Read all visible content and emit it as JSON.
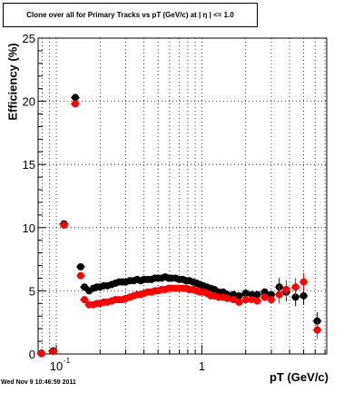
{
  "title": "Clone  over all for Primary Tracks vs pT (GeV/c) at |  η | <= 1.0",
  "timestamp": "Wed Nov  9 10:46:59 2011",
  "colors": {
    "series1": "#000000",
    "series2": "#ff0000",
    "grid": "#000000"
  },
  "chart_data": {
    "type": "scatter",
    "title": "Clone  over all for Primary Tracks vs pT (GeV/c) at |  η | <= 1.0",
    "xlabel": "pT (GeV/c)",
    "ylabel": "Efficiency (%)",
    "xscale": "log",
    "xlim": [
      0.075,
      7.2
    ],
    "ylim": [
      0,
      25
    ],
    "yticks": [
      0,
      5,
      10,
      15,
      20,
      25
    ],
    "xticks": [
      {
        "value": 0.1,
        "label": "10",
        "sup": "-1"
      },
      {
        "value": 1,
        "label": "1",
        "sup": ""
      }
    ],
    "grid": true,
    "series": [
      {
        "color": "#000000",
        "points": [
          [
            0.079,
            0.05
          ],
          [
            0.095,
            0.25
          ],
          [
            0.113,
            10.3
          ],
          [
            0.135,
            20.3
          ],
          [
            0.147,
            6.9
          ],
          [
            0.156,
            5.3
          ],
          [
            0.168,
            5.0
          ],
          [
            0.18,
            5.2
          ],
          [
            0.19,
            5.3
          ],
          [
            0.2,
            5.3
          ],
          [
            0.212,
            5.4
          ],
          [
            0.225,
            5.4
          ],
          [
            0.24,
            5.5
          ],
          [
            0.255,
            5.6
          ],
          [
            0.27,
            5.7
          ],
          [
            0.285,
            5.7
          ],
          [
            0.3,
            5.7
          ],
          [
            0.32,
            5.8
          ],
          [
            0.34,
            5.8
          ],
          [
            0.36,
            5.9
          ],
          [
            0.38,
            5.8
          ],
          [
            0.4,
            5.9
          ],
          [
            0.425,
            5.9
          ],
          [
            0.45,
            5.9
          ],
          [
            0.475,
            6.0
          ],
          [
            0.5,
            6.0
          ],
          [
            0.53,
            6.0
          ],
          [
            0.56,
            6.1
          ],
          [
            0.59,
            6.0
          ],
          [
            0.62,
            6.0
          ],
          [
            0.66,
            6.0
          ],
          [
            0.7,
            5.9
          ],
          [
            0.74,
            5.9
          ],
          [
            0.78,
            5.8
          ],
          [
            0.82,
            5.8
          ],
          [
            0.87,
            5.7
          ],
          [
            0.92,
            5.6
          ],
          [
            0.97,
            5.5
          ],
          [
            1.02,
            5.4
          ],
          [
            1.08,
            5.3
          ],
          [
            1.15,
            5.2
          ],
          [
            1.22,
            5.1
          ],
          [
            1.3,
            4.9
          ],
          [
            1.4,
            4.9
          ],
          [
            1.5,
            4.7
          ],
          [
            1.65,
            4.7
          ],
          [
            1.8,
            4.6
          ],
          [
            2.0,
            4.8
          ],
          [
            2.2,
            4.7
          ],
          [
            2.4,
            4.7
          ],
          [
            2.7,
            4.9
          ],
          [
            3.0,
            4.7
          ],
          [
            3.4,
            5.3
          ],
          [
            3.8,
            4.9
          ],
          [
            4.4,
            4.5
          ],
          [
            5.0,
            4.6
          ],
          [
            6.2,
            2.6
          ]
        ]
      },
      {
        "color": "#ff0000",
        "points": [
          [
            0.079,
            0.02
          ],
          [
            0.095,
            0.2
          ],
          [
            0.113,
            10.2
          ],
          [
            0.135,
            19.8
          ],
          [
            0.147,
            6.2
          ],
          [
            0.156,
            4.3
          ],
          [
            0.168,
            3.9
          ],
          [
            0.18,
            3.9
          ],
          [
            0.19,
            4.0
          ],
          [
            0.2,
            4.0
          ],
          [
            0.212,
            4.1
          ],
          [
            0.225,
            4.1
          ],
          [
            0.24,
            4.2
          ],
          [
            0.255,
            4.3
          ],
          [
            0.27,
            4.3
          ],
          [
            0.285,
            4.3
          ],
          [
            0.3,
            4.4
          ],
          [
            0.32,
            4.5
          ],
          [
            0.34,
            4.6
          ],
          [
            0.36,
            4.7
          ],
          [
            0.38,
            4.7
          ],
          [
            0.4,
            4.8
          ],
          [
            0.425,
            4.9
          ],
          [
            0.45,
            4.9
          ],
          [
            0.475,
            5.0
          ],
          [
            0.5,
            5.0
          ],
          [
            0.53,
            5.1
          ],
          [
            0.56,
            5.1
          ],
          [
            0.59,
            5.2
          ],
          [
            0.62,
            5.2
          ],
          [
            0.66,
            5.2
          ],
          [
            0.7,
            5.2
          ],
          [
            0.74,
            5.2
          ],
          [
            0.78,
            5.2
          ],
          [
            0.82,
            5.1
          ],
          [
            0.87,
            5.1
          ],
          [
            0.92,
            5.0
          ],
          [
            0.97,
            4.9
          ],
          [
            1.02,
            4.9
          ],
          [
            1.08,
            4.8
          ],
          [
            1.15,
            4.6
          ],
          [
            1.22,
            4.6
          ],
          [
            1.3,
            4.5
          ],
          [
            1.4,
            4.5
          ],
          [
            1.5,
            4.4
          ],
          [
            1.65,
            4.3
          ],
          [
            1.8,
            4.1
          ],
          [
            2.0,
            4.3
          ],
          [
            2.2,
            4.3
          ],
          [
            2.4,
            4.2
          ],
          [
            2.7,
            4.5
          ],
          [
            3.0,
            4.3
          ],
          [
            3.4,
            4.7
          ],
          [
            3.8,
            5.1
          ],
          [
            4.4,
            5.3
          ],
          [
            5.0,
            5.7
          ],
          [
            6.2,
            1.9
          ]
        ]
      }
    ]
  }
}
